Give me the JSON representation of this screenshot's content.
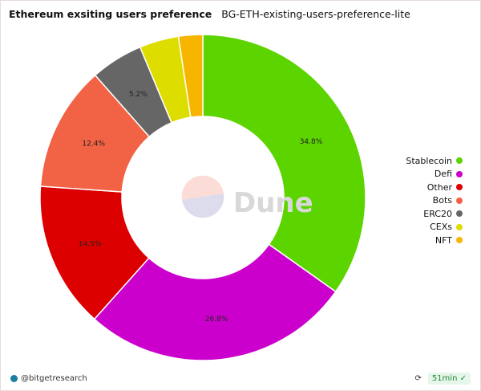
{
  "header": {
    "title": "Ethereum exsiting users preference",
    "subtitle": "BG-ETH-existing-users-preference-lite"
  },
  "watermark": "Dune",
  "footer": {
    "user": "@bitgetresearch",
    "age": "51min",
    "refresh_icon": "refresh-icon",
    "status_icon": "check-circle-icon"
  },
  "chart_data": {
    "type": "pie",
    "donut": true,
    "legend_position": "right",
    "categories": [
      "Stablecoin",
      "Defi",
      "Other",
      "Bots",
      "ERC20",
      "CEXs",
      "NFT"
    ],
    "values": [
      34.8,
      26.8,
      14.5,
      12.4,
      5.2,
      3.9,
      2.4
    ],
    "labels": [
      "34.8%",
      "26.8%",
      "14.5%",
      "12.4%",
      "5.2%",
      "",
      ""
    ],
    "colors": [
      "#5cd400",
      "#cc00cc",
      "#dd0000",
      "#f26244",
      "#666666",
      "#dddd00",
      "#f7b500"
    ]
  }
}
